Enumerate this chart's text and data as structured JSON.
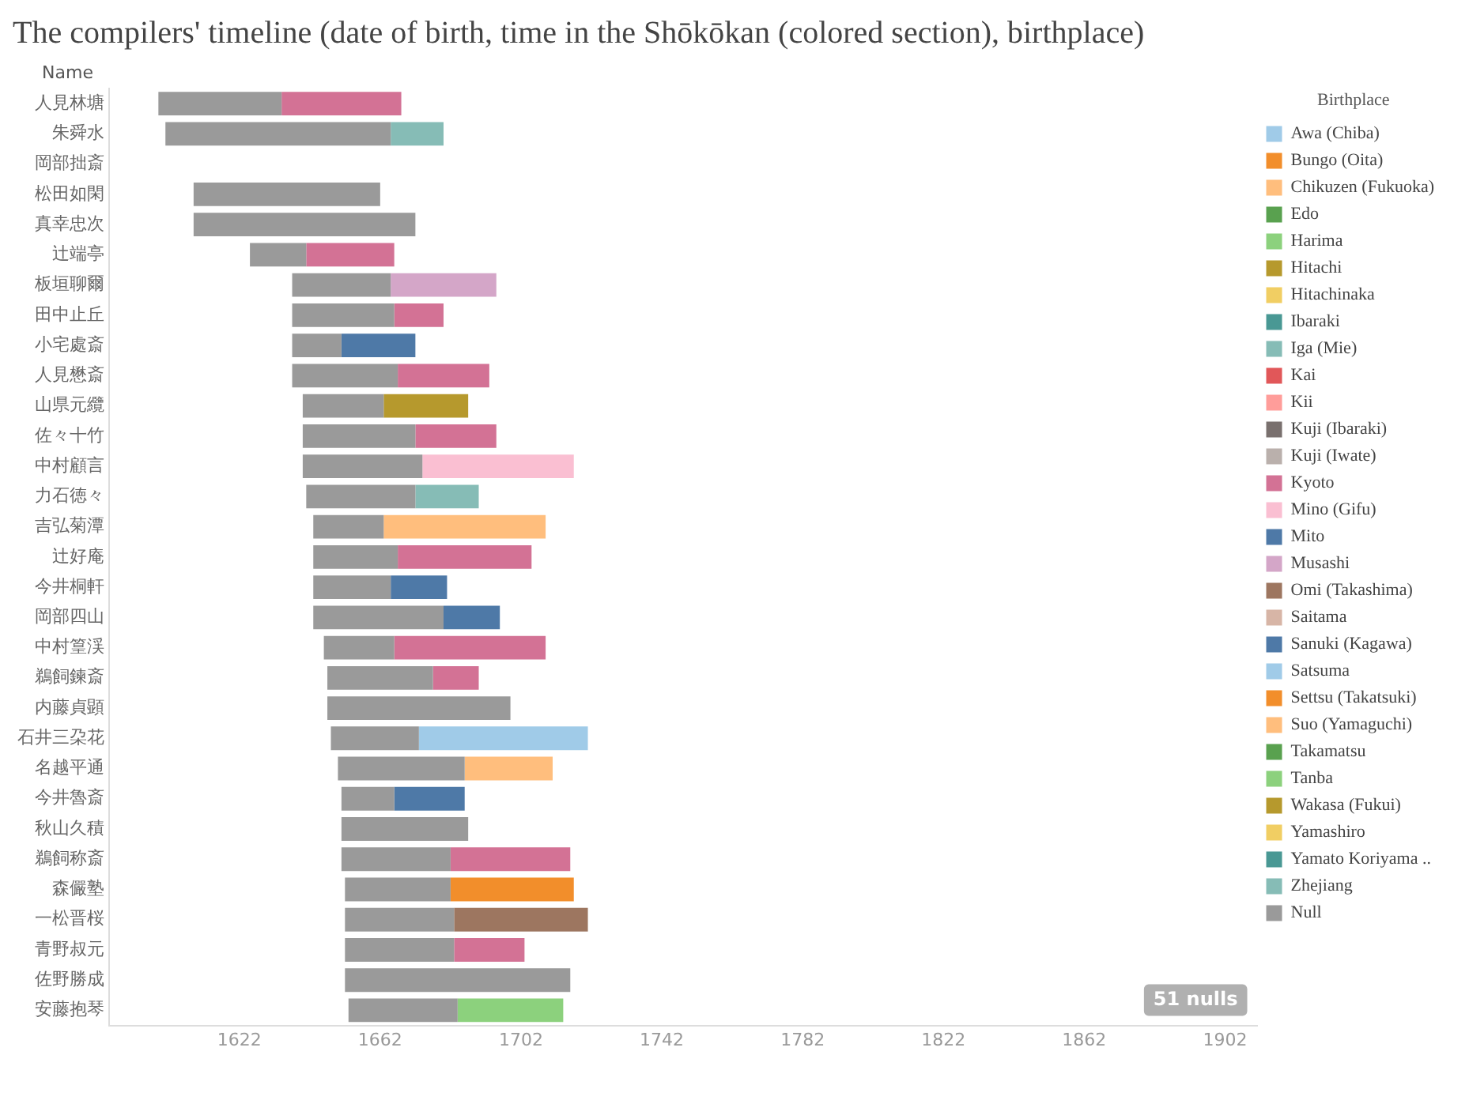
{
  "chart_data": {
    "type": "bar",
    "orientation": "horizontal",
    "title": "The compilers' timeline (date of birth, time in the Shōkōkan (colored section), birthplace)",
    "ylabel": "Name",
    "legend_title": "Birthplace",
    "legend": "right",
    "grid": false,
    "categories": [
      "人見林塘",
      "朱舜水",
      "岡部拙斎",
      "松田如閑",
      "真幸忠次",
      "辻端亭",
      "板垣聊爾",
      "田中止丘",
      "小宅處斎",
      "人見懋斎",
      "山県元纜",
      "佐々十竹",
      "中村顧言",
      "力石徳々",
      "吉弘菊潭",
      "辻好庵",
      "今井桐軒",
      "岡部四山",
      "中村篁渓",
      "鵜飼鍊斎",
      "内藤貞顕",
      "石井三朶花",
      "名越平通",
      "今井魯斎",
      "秋山久積",
      "鵜飼称斎",
      "森儼塾",
      "一松晋桜",
      "青野叔元",
      "佐野勝成",
      "安藤抱琴"
    ],
    "xlim": [
      1585,
      1911
    ],
    "xticks": [
      1622,
      1662,
      1702,
      1742,
      1782,
      1822,
      1862,
      1902
    ],
    "annotations": [
      "51 nulls"
    ],
    "series": [
      {
        "color": "#9a9a9a",
        "base": [
          1599,
          1601,
          null,
          1609,
          1609,
          1625,
          1637,
          1637,
          1637,
          1637,
          1640,
          1640,
          1640,
          1641,
          1643,
          1643,
          1643,
          1643,
          1646,
          1647,
          1647,
          1648,
          1650,
          1651,
          1651,
          1651,
          1652,
          1652,
          1652,
          1652,
          1653
        ],
        "values": [
          35,
          64,
          null,
          53,
          63,
          16,
          28,
          29,
          14,
          30,
          23,
          32,
          34,
          31,
          20,
          24,
          22,
          37,
          20,
          30,
          52,
          25,
          36,
          15,
          36,
          31,
          30,
          31,
          31,
          64,
          31
        ]
      },
      {
        "name": "Awa (Chiba)",
        "color": "#a0cbe8",
        "base": [
          null,
          null,
          null,
          null,
          null,
          null,
          null,
          null,
          null,
          null,
          null,
          null,
          null,
          null,
          null,
          null,
          null,
          null,
          null,
          null,
          null,
          1673,
          null,
          null,
          null,
          null,
          null,
          null,
          null,
          null,
          null
        ],
        "values": [
          null,
          null,
          null,
          null,
          null,
          null,
          null,
          null,
          null,
          null,
          null,
          null,
          null,
          null,
          null,
          null,
          null,
          null,
          null,
          null,
          null,
          48,
          null,
          null,
          null,
          null,
          null,
          null,
          null,
          null,
          null
        ]
      },
      {
        "name": "Bungo (Oita)",
        "color": "#f28e2b",
        "base": [
          null,
          null,
          null,
          null,
          null,
          null,
          null,
          null,
          null,
          null,
          null,
          null,
          null,
          null,
          null,
          null,
          null,
          null,
          null,
          null,
          null,
          null,
          null,
          null,
          null,
          null,
          1682,
          null,
          null,
          null,
          null
        ],
        "values": [
          null,
          null,
          null,
          null,
          null,
          null,
          null,
          null,
          null,
          null,
          null,
          null,
          null,
          null,
          null,
          null,
          null,
          null,
          null,
          null,
          null,
          null,
          null,
          null,
          null,
          null,
          35,
          null,
          null,
          null,
          null
        ]
      },
      {
        "name": "Chikuzen (Fukuoka)",
        "color": "#ffbe7d",
        "base": [
          null,
          null,
          null,
          null,
          null,
          null,
          null,
          null,
          null,
          null,
          null,
          null,
          null,
          null,
          1663,
          null,
          null,
          null,
          null,
          null,
          null,
          null,
          1686,
          null,
          null,
          null,
          null,
          null,
          null,
          null,
          null
        ],
        "values": [
          null,
          null,
          null,
          null,
          null,
          null,
          null,
          null,
          null,
          null,
          null,
          null,
          null,
          null,
          46,
          null,
          null,
          null,
          null,
          null,
          null,
          null,
          25,
          null,
          null,
          null,
          null,
          null,
          null,
          null,
          null
        ]
      },
      {
        "name": "Edo",
        "color": "#59a14f",
        "values": [
          null,
          null,
          null,
          null,
          null,
          null,
          null,
          null,
          null,
          null,
          null,
          null,
          null,
          null,
          null,
          null,
          null,
          null,
          null,
          null,
          null,
          null,
          null,
          null,
          null,
          null,
          null,
          null,
          null,
          null,
          null
        ]
      },
      {
        "name": "Harima",
        "color": "#8cd17d",
        "base": [
          null,
          null,
          null,
          null,
          null,
          null,
          null,
          null,
          null,
          null,
          null,
          null,
          null,
          null,
          null,
          null,
          null,
          null,
          null,
          null,
          null,
          null,
          null,
          null,
          null,
          null,
          null,
          null,
          null,
          null,
          1684
        ],
        "values": [
          null,
          null,
          null,
          null,
          null,
          null,
          null,
          null,
          null,
          null,
          null,
          null,
          null,
          null,
          null,
          null,
          null,
          null,
          null,
          null,
          null,
          null,
          null,
          null,
          null,
          null,
          null,
          null,
          null,
          null,
          30
        ]
      },
      {
        "name": "Hitachi",
        "color": "#b6992d",
        "base": [
          null,
          null,
          null,
          null,
          null,
          null,
          null,
          null,
          null,
          null,
          1663,
          null,
          null,
          null,
          null,
          null,
          null,
          null,
          null,
          null,
          null,
          null,
          null,
          null,
          null,
          null,
          null,
          null,
          null,
          null,
          null
        ],
        "values": [
          null,
          null,
          null,
          null,
          null,
          null,
          null,
          null,
          null,
          null,
          24,
          null,
          null,
          null,
          null,
          null,
          null,
          null,
          null,
          null,
          null,
          null,
          null,
          null,
          null,
          null,
          null,
          null,
          null,
          null,
          null
        ]
      },
      {
        "name": "Hitachinaka",
        "color": "#f1ce63",
        "values": [
          null,
          null,
          null,
          null,
          null,
          null,
          null,
          null,
          null,
          null,
          null,
          null,
          null,
          null,
          null,
          null,
          null,
          null,
          null,
          null,
          null,
          null,
          null,
          null,
          null,
          null,
          null,
          null,
          null,
          null,
          null
        ]
      },
      {
        "name": "Ibaraki",
        "color": "#499894",
        "values": [
          null,
          null,
          null,
          null,
          null,
          null,
          null,
          null,
          null,
          null,
          null,
          null,
          null,
          null,
          null,
          null,
          null,
          null,
          null,
          null,
          null,
          null,
          null,
          null,
          null,
          null,
          null,
          null,
          null,
          null,
          null
        ]
      },
      {
        "name": "Iga (Mie)",
        "color": "#86bcb6",
        "base": [
          null,
          null,
          null,
          null,
          null,
          null,
          null,
          null,
          null,
          null,
          null,
          null,
          null,
          1672,
          null,
          null,
          null,
          null,
          null,
          null,
          null,
          null,
          null,
          null,
          null,
          null,
          null,
          null,
          null,
          null,
          null
        ],
        "values": [
          null,
          null,
          null,
          null,
          null,
          null,
          null,
          null,
          null,
          null,
          null,
          null,
          null,
          18,
          null,
          null,
          null,
          null,
          null,
          null,
          null,
          null,
          null,
          null,
          null,
          null,
          null,
          null,
          null,
          null,
          null
        ]
      },
      {
        "name": "Kai",
        "color": "#e15759",
        "values": [
          null,
          null,
          null,
          null,
          null,
          null,
          null,
          null,
          null,
          null,
          null,
          null,
          null,
          null,
          null,
          null,
          null,
          null,
          null,
          null,
          null,
          null,
          null,
          null,
          null,
          null,
          null,
          null,
          null,
          null,
          null
        ]
      },
      {
        "name": "Kii",
        "color": "#ff9d9a",
        "values": [
          null,
          null,
          null,
          null,
          null,
          null,
          null,
          null,
          null,
          null,
          null,
          null,
          null,
          null,
          null,
          null,
          null,
          null,
          null,
          null,
          null,
          null,
          null,
          null,
          null,
          null,
          null,
          null,
          null,
          null,
          null
        ]
      },
      {
        "name": "Kuji (Ibaraki)",
        "color": "#79706e",
        "values": [
          null,
          null,
          null,
          null,
          null,
          null,
          null,
          null,
          null,
          null,
          null,
          null,
          null,
          null,
          null,
          null,
          null,
          null,
          null,
          null,
          null,
          null,
          null,
          null,
          null,
          null,
          null,
          null,
          null,
          null,
          null
        ]
      },
      {
        "name": "Kuji (Iwate)",
        "color": "#bab0ac",
        "values": [
          null,
          null,
          null,
          null,
          null,
          null,
          null,
          null,
          null,
          null,
          null,
          null,
          null,
          null,
          null,
          null,
          null,
          null,
          null,
          null,
          null,
          null,
          null,
          null,
          null,
          null,
          null,
          null,
          null,
          null,
          null
        ]
      },
      {
        "name": "Kyoto",
        "color": "#d37295",
        "base": [
          1634,
          null,
          null,
          null,
          null,
          1641,
          null,
          1666,
          null,
          1667,
          null,
          1672,
          null,
          null,
          null,
          1667,
          null,
          null,
          1666,
          1677,
          null,
          null,
          null,
          null,
          null,
          1682,
          null,
          null,
          1683,
          null,
          null
        ],
        "values": [
          34,
          null,
          null,
          null,
          null,
          25,
          null,
          14,
          null,
          26,
          null,
          23,
          null,
          null,
          null,
          38,
          null,
          null,
          43,
          13,
          null,
          null,
          null,
          null,
          null,
          34,
          null,
          null,
          20,
          null,
          null
        ]
      },
      {
        "name": "Mino (Gifu)",
        "color": "#fabfd2",
        "base": [
          null,
          null,
          null,
          null,
          null,
          null,
          null,
          null,
          null,
          null,
          null,
          null,
          1674,
          null,
          null,
          null,
          null,
          null,
          null,
          null,
          null,
          null,
          null,
          null,
          null,
          null,
          null,
          null,
          null,
          null,
          null
        ],
        "values": [
          null,
          null,
          null,
          null,
          null,
          null,
          null,
          null,
          null,
          null,
          null,
          null,
          43,
          null,
          null,
          null,
          null,
          null,
          null,
          null,
          null,
          null,
          null,
          null,
          null,
          null,
          null,
          null,
          null,
          null,
          null
        ]
      },
      {
        "name": "Mito",
        "color": "#4e79a7",
        "base": [
          null,
          null,
          null,
          null,
          null,
          null,
          null,
          null,
          1651,
          null,
          null,
          null,
          null,
          null,
          null,
          null,
          1665,
          1680,
          null,
          null,
          null,
          null,
          null,
          1666,
          null,
          null,
          null,
          null,
          null,
          null,
          null
        ],
        "values": [
          null,
          null,
          null,
          null,
          null,
          null,
          null,
          null,
          21,
          null,
          null,
          null,
          null,
          null,
          null,
          null,
          16,
          16,
          null,
          null,
          null,
          null,
          null,
          20,
          null,
          null,
          null,
          null,
          null,
          null,
          null
        ]
      },
      {
        "name": "Musashi",
        "color": "#d4a6c8",
        "base": [
          null,
          null,
          null,
          null,
          null,
          null,
          1665,
          null,
          null,
          null,
          null,
          null,
          null,
          null,
          null,
          null,
          null,
          null,
          null,
          null,
          null,
          null,
          null,
          null,
          null,
          null,
          null,
          null,
          null,
          null,
          null
        ],
        "values": [
          null,
          null,
          null,
          null,
          null,
          null,
          30,
          null,
          null,
          null,
          null,
          null,
          null,
          null,
          null,
          null,
          null,
          null,
          null,
          null,
          null,
          null,
          null,
          null,
          null,
          null,
          null,
          null,
          null,
          null,
          null
        ]
      },
      {
        "name": "Omi (Takashima)",
        "color": "#9d7660",
        "base": [
          null,
          null,
          null,
          null,
          null,
          null,
          null,
          null,
          null,
          null,
          null,
          null,
          null,
          null,
          null,
          null,
          null,
          null,
          null,
          null,
          null,
          null,
          null,
          null,
          null,
          null,
          null,
          1683,
          null,
          null,
          null
        ],
        "values": [
          null,
          null,
          null,
          null,
          null,
          null,
          null,
          null,
          null,
          null,
          null,
          null,
          null,
          null,
          null,
          null,
          null,
          null,
          null,
          null,
          null,
          null,
          null,
          null,
          null,
          null,
          null,
          38,
          null,
          null,
          null
        ]
      },
      {
        "name": "Saitama",
        "color": "#d7b5a6",
        "values": [
          null,
          null,
          null,
          null,
          null,
          null,
          null,
          null,
          null,
          null,
          null,
          null,
          null,
          null,
          null,
          null,
          null,
          null,
          null,
          null,
          null,
          null,
          null,
          null,
          null,
          null,
          null,
          null,
          null,
          null,
          null
        ]
      },
      {
        "name": "Sanuki (Kagawa)",
        "color": "#4e79a7",
        "values": [
          null,
          null,
          null,
          null,
          null,
          null,
          null,
          null,
          null,
          null,
          null,
          null,
          null,
          null,
          null,
          null,
          null,
          null,
          null,
          null,
          null,
          null,
          null,
          null,
          null,
          null,
          null,
          null,
          null,
          null,
          null
        ]
      },
      {
        "name": "Satsuma",
        "color": "#a0cbe8",
        "values": [
          null,
          null,
          null,
          null,
          null,
          null,
          null,
          null,
          null,
          null,
          null,
          null,
          null,
          null,
          null,
          null,
          null,
          null,
          null,
          null,
          null,
          null,
          null,
          null,
          null,
          null,
          null,
          null,
          null,
          null,
          null
        ]
      },
      {
        "name": "Settsu (Takatsuki)",
        "color": "#f28e2b",
        "values": [
          null,
          null,
          null,
          null,
          null,
          null,
          null,
          null,
          null,
          null,
          null,
          null,
          null,
          null,
          null,
          null,
          null,
          null,
          null,
          null,
          null,
          null,
          null,
          null,
          null,
          null,
          null,
          null,
          null,
          null,
          null
        ]
      },
      {
        "name": "Suo (Yamaguchi)",
        "color": "#ffbe7d",
        "values": [
          null,
          null,
          null,
          null,
          null,
          null,
          null,
          null,
          null,
          null,
          null,
          null,
          null,
          null,
          null,
          null,
          null,
          null,
          null,
          null,
          null,
          null,
          null,
          null,
          null,
          null,
          null,
          null,
          null,
          null,
          null
        ]
      },
      {
        "name": "Takamatsu",
        "color": "#59a14f",
        "values": [
          null,
          null,
          null,
          null,
          null,
          null,
          null,
          null,
          null,
          null,
          null,
          null,
          null,
          null,
          null,
          null,
          null,
          null,
          null,
          null,
          null,
          null,
          null,
          null,
          null,
          null,
          null,
          null,
          null,
          null,
          null
        ]
      },
      {
        "name": "Tanba",
        "color": "#8cd17d",
        "values": [
          null,
          null,
          null,
          null,
          null,
          null,
          null,
          null,
          null,
          null,
          null,
          null,
          null,
          null,
          null,
          null,
          null,
          null,
          null,
          null,
          null,
          null,
          null,
          null,
          null,
          null,
          null,
          null,
          null,
          null,
          null
        ]
      },
      {
        "name": "Wakasa (Fukui)",
        "color": "#b6992d",
        "values": [
          null,
          null,
          null,
          null,
          null,
          null,
          null,
          null,
          null,
          null,
          null,
          null,
          null,
          null,
          null,
          null,
          null,
          null,
          null,
          null,
          null,
          null,
          null,
          null,
          null,
          null,
          null,
          null,
          null,
          null,
          null
        ]
      },
      {
        "name": "Yamashiro",
        "color": "#f1ce63",
        "values": [
          null,
          null,
          null,
          null,
          null,
          null,
          null,
          null,
          null,
          null,
          null,
          null,
          null,
          null,
          null,
          null,
          null,
          null,
          null,
          null,
          null,
          null,
          null,
          null,
          null,
          null,
          null,
          null,
          null,
          null,
          null
        ]
      },
      {
        "name": "Yamato Koriyama ..",
        "color": "#499894",
        "values": [
          null,
          null,
          null,
          null,
          null,
          null,
          null,
          null,
          null,
          null,
          null,
          null,
          null,
          null,
          null,
          null,
          null,
          null,
          null,
          null,
          null,
          null,
          null,
          null,
          null,
          null,
          null,
          null,
          null,
          null,
          null
        ]
      },
      {
        "name": "Zhejiang",
        "color": "#86bcb6",
        "base": [
          null,
          1665,
          null,
          null,
          null,
          null,
          null,
          null,
          null,
          null,
          null,
          null,
          null,
          null,
          null,
          null,
          null,
          null,
          null,
          null,
          null,
          null,
          null,
          null,
          null,
          null,
          null,
          null,
          null,
          null,
          null
        ],
        "values": [
          null,
          15,
          null,
          null,
          null,
          null,
          null,
          null,
          null,
          null,
          null,
          null,
          null,
          null,
          null,
          null,
          null,
          null,
          null,
          null,
          null,
          null,
          null,
          null,
          null,
          null,
          null,
          null,
          null,
          null,
          null
        ]
      },
      {
        "name": "Null",
        "color": "#9a9a9a",
        "values": [
          null,
          null,
          null,
          null,
          null,
          null,
          null,
          null,
          null,
          null,
          null,
          null,
          null,
          null,
          null,
          null,
          null,
          null,
          null,
          null,
          null,
          null,
          null,
          null,
          null,
          null,
          null,
          null,
          null,
          null,
          null
        ]
      }
    ]
  }
}
